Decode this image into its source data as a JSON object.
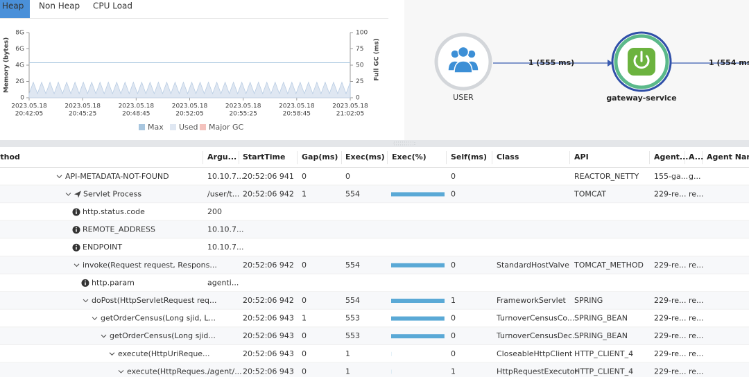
{
  "tabs": [
    "Heap",
    "Non Heap",
    "CPU Load"
  ],
  "chart_data": {
    "type": "line",
    "y_label": "Memory (bytes)",
    "y2_label": "Full GC (ms)",
    "ylim": [
      0,
      8
    ],
    "yticks": [
      0,
      {
        "value": 2,
        "label": "2G"
      },
      {
        "value": 4,
        "label": "4G"
      },
      {
        "value": 6,
        "label": "6G"
      },
      {
        "value": 8,
        "label": "8G"
      }
    ],
    "y2lim": [
      0,
      100
    ],
    "y2ticks": [
      0,
      25,
      50,
      75,
      100
    ],
    "xticks": [
      [
        "2023.05.18",
        "20:42:05"
      ],
      [
        "2023.05.18",
        "20:45:25"
      ],
      [
        "2023.05.18",
        "20:48:45"
      ],
      [
        "2023.05.18",
        "20:52:05"
      ],
      [
        "2023.05.18",
        "20:55:25"
      ],
      [
        "2023.05.18",
        "20:58:45"
      ],
      [
        "2023.05.18",
        "21:02:05"
      ]
    ],
    "series": [
      {
        "name": "Max",
        "color": "#a8c6df",
        "values": [
          4.3,
          4.3
        ]
      },
      {
        "name": "Used",
        "color": "#dfe7f2",
        "values": [
          0.5,
          1.9,
          0.5,
          1.9,
          0.5,
          1.9,
          0.5,
          1.9,
          0.5,
          1.9,
          0.5,
          1.9,
          0.5,
          1.9,
          0.5,
          1.9,
          0.5,
          1.9,
          0.5,
          1.9,
          0.5,
          1.9,
          0.5,
          1.9,
          0.5,
          1.9,
          0.5,
          1.9,
          0.5,
          1.9,
          0.5,
          1.9,
          0.5,
          1.9,
          0.5,
          1.9,
          0.5,
          1.9,
          0.5,
          1.9,
          0.5,
          1.9,
          0.5,
          1.9,
          0.5,
          1.9,
          0.5,
          1.9,
          0.5,
          1.9,
          0.5,
          1.9,
          0.5,
          1.9,
          0.5,
          1.9,
          0.5,
          1.9,
          0.5,
          1.9,
          0.5,
          1.9,
          0.5,
          1.9,
          0.5,
          1.9,
          0.5,
          1.9,
          0.5,
          1.9,
          0.5,
          1.9,
          0.5,
          1.9,
          0.5,
          1.9,
          0.5,
          1.9
        ]
      },
      {
        "name": "Major GC",
        "color": "#f4c2bd",
        "values": []
      }
    ]
  },
  "topology": {
    "nodes": [
      "USER",
      "gateway-service"
    ],
    "edges": [
      "1 (555 ms)",
      "1 (554 ms)"
    ]
  },
  "table": {
    "columns": [
      "Method",
      "Argu...",
      "StartTime",
      "Gap(ms)",
      "Exec(ms)",
      "Exec(%)",
      "Self(ms)",
      "Class",
      "API",
      "Agent...",
      "A...",
      "Agent Name"
    ],
    "rows": [
      {
        "method": "API-METADATA-NOT-FOUND",
        "args": "10.10.7...",
        "start": "20:52:06 941",
        "gap": "0",
        "exec": "0",
        "self": "0",
        "api": "REACTOR_NETTY",
        "agent": "155-ga...",
        "a": "g..."
      },
      {
        "method": "Servlet Process",
        "args": "/user/t...",
        "start": "20:52:06 942",
        "gap": "1",
        "exec": "554",
        "exec_pct": 100,
        "self": "0",
        "api": "TOMCAT",
        "agent": "229-re...",
        "a": "re..."
      },
      {
        "method": "http.status.code",
        "args": "200"
      },
      {
        "method": "REMOTE_ADDRESS",
        "args": "10.10.7..."
      },
      {
        "method": "ENDPOINT",
        "args": "10.10.7..."
      },
      {
        "method": "invoke(Request request, Respons...",
        "start": "20:52:06 942",
        "gap": "0",
        "exec": "554",
        "exec_pct": 100,
        "self": "0",
        "class": "StandardHostValve",
        "api": "TOMCAT_METHOD",
        "agent": "229-re...",
        "a": "re..."
      },
      {
        "method": "http.param",
        "args": "agenti..."
      },
      {
        "method": "doPost(HttpServletRequest req...",
        "start": "20:52:06 942",
        "gap": "0",
        "exec": "554",
        "exec_pct": 100,
        "self": "1",
        "class": "FrameworkServlet",
        "api": "SPRING",
        "agent": "229-re...",
        "a": "re..."
      },
      {
        "method": "getOrderCensus(Long sjid, L...",
        "start": "20:52:06 943",
        "gap": "1",
        "exec": "553",
        "exec_pct": 99.8,
        "self": "0",
        "class": "TurnoverCensusCo...",
        "api": "SPRING_BEAN",
        "agent": "229-re...",
        "a": "re..."
      },
      {
        "method": "getOrderCensus(Long sjid...",
        "start": "20:52:06 943",
        "gap": "0",
        "exec": "553",
        "exec_pct": 99.8,
        "self": "0",
        "class": "TurnoverCensusDec...",
        "api": "SPRING_BEAN",
        "agent": "229-re...",
        "a": "re..."
      },
      {
        "method": "execute(HttpUriReque...",
        "start": "20:52:06 943",
        "gap": "0",
        "exec": "1",
        "exec_pct": 0.2,
        "self": "0",
        "class": "CloseableHttpClient",
        "api": "HTTP_CLIENT_4",
        "agent": "229-re...",
        "a": "re..."
      },
      {
        "method": "execute(HttpReques...",
        "args": "/agent/...",
        "start": "20:52:06 943",
        "gap": "0",
        "exec": "1",
        "exec_pct": 0.2,
        "self": "1",
        "class": "HttpRequestExecutor",
        "api": "HTTP_CLIENT_4",
        "agent": "229-re...",
        "a": "re..."
      }
    ]
  }
}
